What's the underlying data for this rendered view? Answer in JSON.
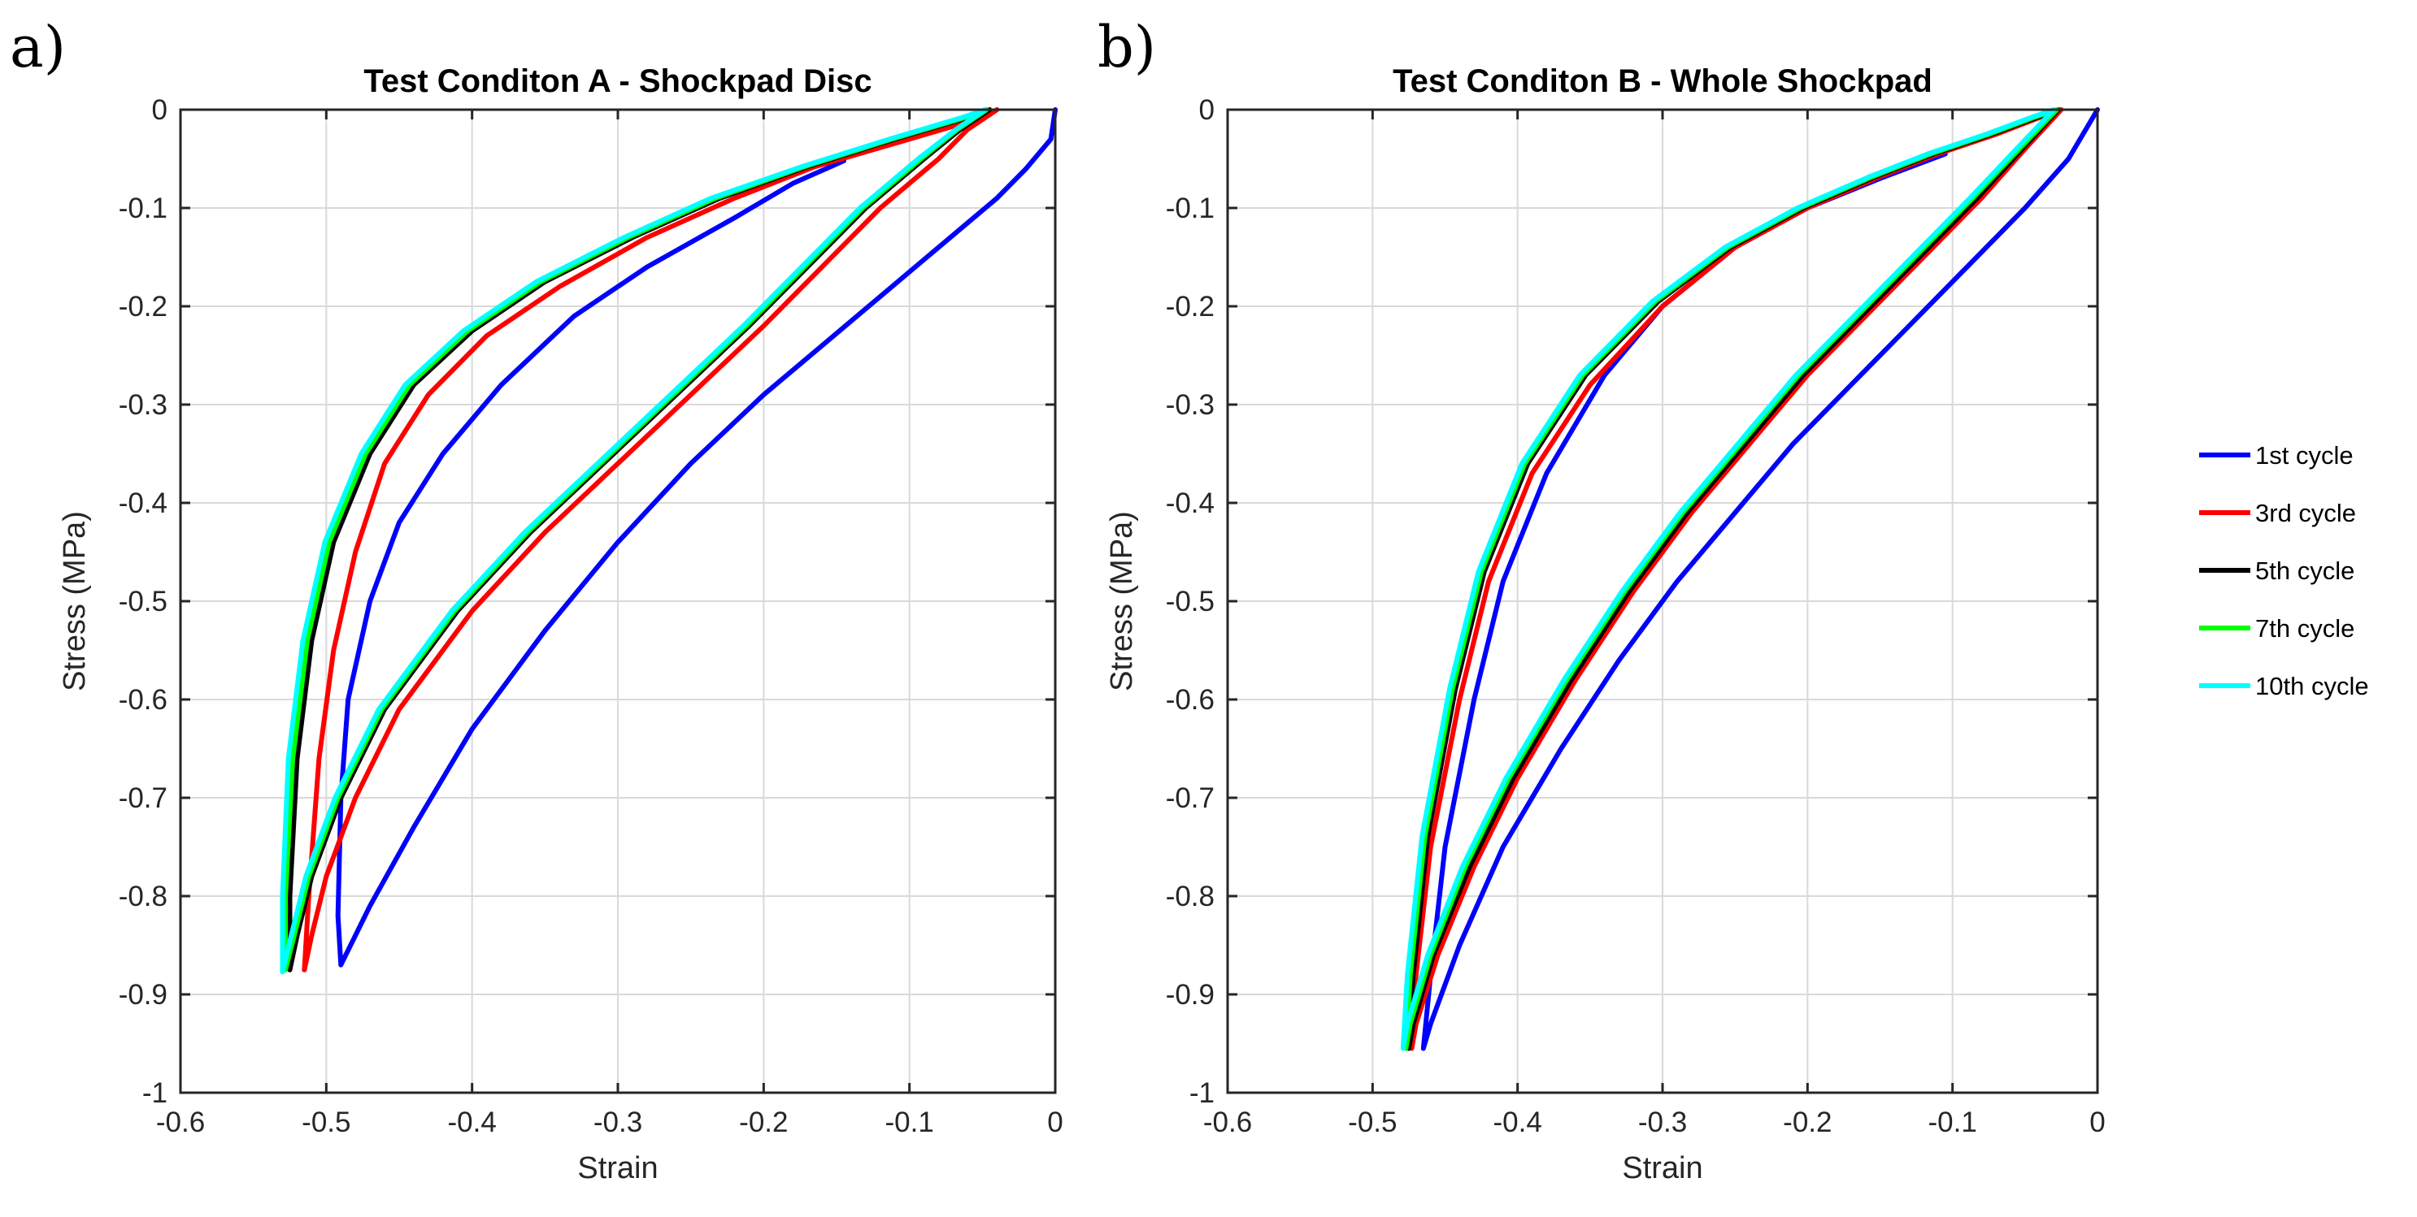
{
  "chart_data": [
    {
      "type": "line",
      "panel_label": "a)",
      "title": "Test Conditon A - Shockpad Disc",
      "xlabel": "Strain",
      "ylabel": "Stress (MPa)",
      "xlim": [
        -0.6,
        0
      ],
      "ylim": [
        -1,
        0
      ],
      "xticks": [
        -0.6,
        -0.5,
        -0.4,
        -0.3,
        -0.2,
        -0.1,
        0
      ],
      "yticks": [
        0,
        -0.1,
        -0.2,
        -0.3,
        -0.4,
        -0.5,
        -0.6,
        -0.7,
        -0.8,
        -0.9,
        -1
      ],
      "xtick_labels": [
        "-0.6",
        "-0.5",
        "-0.4",
        "-0.3",
        "-0.2",
        "-0.1",
        "0"
      ],
      "ytick_labels": [
        "0",
        "-0.1",
        "-0.2",
        "-0.3",
        "-0.4",
        "-0.5",
        "-0.6",
        "-0.7",
        "-0.8",
        "-0.9",
        "-1"
      ],
      "grid": true,
      "series": [
        {
          "name": "1st cycle",
          "color": "#0000ff",
          "x": [
            0,
            -0.003,
            -0.02,
            -0.04,
            -0.08,
            -0.12,
            -0.16,
            -0.2,
            -0.25,
            -0.3,
            -0.35,
            -0.4,
            -0.44,
            -0.47,
            -0.49,
            -0.492,
            -0.49,
            -0.485,
            -0.47,
            -0.45,
            -0.42,
            -0.38,
            -0.33,
            -0.28,
            -0.22,
            -0.18,
            -0.145
          ],
          "y": [
            0,
            -0.03,
            -0.06,
            -0.09,
            -0.14,
            -0.19,
            -0.24,
            -0.29,
            -0.36,
            -0.44,
            -0.53,
            -0.63,
            -0.73,
            -0.81,
            -0.87,
            -0.82,
            -0.7,
            -0.6,
            -0.5,
            -0.42,
            -0.35,
            -0.28,
            -0.21,
            -0.16,
            -0.11,
            -0.075,
            -0.052
          ]
        },
        {
          "name": "3rd cycle",
          "color": "#ff0000",
          "x": [
            -0.04,
            -0.06,
            -0.08,
            -0.12,
            -0.16,
            -0.2,
            -0.25,
            -0.3,
            -0.35,
            -0.4,
            -0.45,
            -0.48,
            -0.5,
            -0.51,
            -0.515,
            -0.512,
            -0.505,
            -0.495,
            -0.48,
            -0.46,
            -0.43,
            -0.39,
            -0.34,
            -0.28,
            -0.22,
            -0.165,
            -0.1,
            -0.05,
            -0.04
          ],
          "y": [
            0,
            -0.02,
            -0.05,
            -0.1,
            -0.16,
            -0.22,
            -0.29,
            -0.36,
            -0.43,
            -0.51,
            -0.61,
            -0.7,
            -0.78,
            -0.84,
            -0.875,
            -0.8,
            -0.66,
            -0.55,
            -0.45,
            -0.36,
            -0.29,
            -0.23,
            -0.18,
            -0.13,
            -0.09,
            -0.058,
            -0.03,
            -0.008,
            0
          ]
        },
        {
          "name": "5th cycle",
          "color": "#000000",
          "x": [
            -0.045,
            -0.065,
            -0.09,
            -0.13,
            -0.17,
            -0.21,
            -0.26,
            -0.31,
            -0.36,
            -0.41,
            -0.46,
            -0.49,
            -0.51,
            -0.52,
            -0.525,
            -0.525,
            -0.52,
            -0.51,
            -0.495,
            -0.47,
            -0.44,
            -0.4,
            -0.35,
            -0.29,
            -0.23,
            -0.17,
            -0.11,
            -0.06,
            -0.045
          ],
          "y": [
            0,
            -0.02,
            -0.05,
            -0.1,
            -0.16,
            -0.22,
            -0.29,
            -0.36,
            -0.43,
            -0.51,
            -0.61,
            -0.7,
            -0.78,
            -0.84,
            -0.875,
            -0.8,
            -0.66,
            -0.54,
            -0.44,
            -0.35,
            -0.28,
            -0.225,
            -0.175,
            -0.13,
            -0.09,
            -0.058,
            -0.03,
            -0.008,
            0
          ]
        },
        {
          "name": "7th cycle",
          "color": "#00ff00",
          "x": [
            -0.047,
            -0.067,
            -0.092,
            -0.132,
            -0.172,
            -0.212,
            -0.262,
            -0.312,
            -0.362,
            -0.412,
            -0.462,
            -0.492,
            -0.512,
            -0.522,
            -0.528,
            -0.528,
            -0.523,
            -0.513,
            -0.498,
            -0.473,
            -0.443,
            -0.403,
            -0.353,
            -0.293,
            -0.233,
            -0.172,
            -0.112,
            -0.062,
            -0.047
          ],
          "y": [
            0,
            -0.02,
            -0.05,
            -0.1,
            -0.16,
            -0.22,
            -0.29,
            -0.36,
            -0.43,
            -0.51,
            -0.61,
            -0.7,
            -0.78,
            -0.84,
            -0.875,
            -0.8,
            -0.66,
            -0.54,
            -0.44,
            -0.35,
            -0.28,
            -0.225,
            -0.175,
            -0.13,
            -0.09,
            -0.058,
            -0.03,
            -0.008,
            0
          ]
        },
        {
          "name": "10th cycle",
          "color": "#00ffff",
          "x": [
            -0.048,
            -0.068,
            -0.094,
            -0.134,
            -0.174,
            -0.214,
            -0.264,
            -0.314,
            -0.364,
            -0.414,
            -0.464,
            -0.494,
            -0.514,
            -0.524,
            -0.53,
            -0.53,
            -0.526,
            -0.516,
            -0.501,
            -0.476,
            -0.446,
            -0.406,
            -0.356,
            -0.296,
            -0.236,
            -0.174,
            -0.114,
            -0.064,
            -0.048
          ],
          "y": [
            0,
            -0.02,
            -0.05,
            -0.1,
            -0.16,
            -0.22,
            -0.29,
            -0.36,
            -0.43,
            -0.51,
            -0.61,
            -0.7,
            -0.78,
            -0.84,
            -0.877,
            -0.8,
            -0.66,
            -0.54,
            -0.44,
            -0.35,
            -0.28,
            -0.225,
            -0.175,
            -0.13,
            -0.09,
            -0.058,
            -0.03,
            -0.008,
            0
          ]
        }
      ]
    },
    {
      "type": "line",
      "panel_label": "b)",
      "title": "Test Conditon B - Whole Shockpad",
      "xlabel": "Strain",
      "ylabel": "Stress (MPa)",
      "xlim": [
        -0.6,
        0
      ],
      "ylim": [
        -1,
        0
      ],
      "xticks": [
        -0.6,
        -0.5,
        -0.4,
        -0.3,
        -0.2,
        -0.1,
        0
      ],
      "yticks": [
        0,
        -0.1,
        -0.2,
        -0.3,
        -0.4,
        -0.5,
        -0.6,
        -0.7,
        -0.8,
        -0.9,
        -1
      ],
      "xtick_labels": [
        "-0.6",
        "-0.5",
        "-0.4",
        "-0.3",
        "-0.2",
        "-0.1",
        "0"
      ],
      "ytick_labels": [
        "0",
        "-0.1",
        "-0.2",
        "-0.3",
        "-0.4",
        "-0.5",
        "-0.6",
        "-0.7",
        "-0.8",
        "-0.9",
        "-1"
      ],
      "grid": true,
      "series": [
        {
          "name": "1st cycle",
          "color": "#0000ff",
          "x": [
            0,
            -0.02,
            -0.05,
            -0.09,
            -0.13,
            -0.17,
            -0.21,
            -0.25,
            -0.29,
            -0.33,
            -0.37,
            -0.41,
            -0.44,
            -0.46,
            -0.465,
            -0.46,
            -0.45,
            -0.43,
            -0.41,
            -0.38,
            -0.34,
            -0.3,
            -0.25,
            -0.2,
            -0.15,
            -0.105
          ],
          "y": [
            0,
            -0.05,
            -0.1,
            -0.16,
            -0.22,
            -0.28,
            -0.34,
            -0.41,
            -0.48,
            -0.56,
            -0.65,
            -0.75,
            -0.85,
            -0.93,
            -0.955,
            -0.88,
            -0.75,
            -0.6,
            -0.48,
            -0.37,
            -0.27,
            -0.2,
            -0.14,
            -0.1,
            -0.07,
            -0.045
          ]
        },
        {
          "name": "3rd cycle",
          "color": "#ff0000",
          "x": [
            -0.025,
            -0.05,
            -0.08,
            -0.12,
            -0.16,
            -0.2,
            -0.24,
            -0.28,
            -0.32,
            -0.36,
            -0.4,
            -0.43,
            -0.455,
            -0.47,
            -0.473,
            -0.47,
            -0.46,
            -0.44,
            -0.42,
            -0.39,
            -0.35,
            -0.3,
            -0.25,
            -0.2,
            -0.15,
            -0.11,
            -0.07,
            -0.04,
            -0.025
          ],
          "y": [
            0,
            -0.04,
            -0.09,
            -0.15,
            -0.21,
            -0.27,
            -0.34,
            -0.41,
            -0.49,
            -0.58,
            -0.68,
            -0.77,
            -0.86,
            -0.93,
            -0.955,
            -0.88,
            -0.75,
            -0.6,
            -0.48,
            -0.37,
            -0.28,
            -0.2,
            -0.14,
            -0.1,
            -0.068,
            -0.045,
            -0.025,
            -0.008,
            0
          ]
        },
        {
          "name": "5th cycle",
          "color": "#000000",
          "x": [
            -0.027,
            -0.052,
            -0.083,
            -0.123,
            -0.163,
            -0.203,
            -0.243,
            -0.283,
            -0.323,
            -0.363,
            -0.403,
            -0.433,
            -0.458,
            -0.472,
            -0.475,
            -0.472,
            -0.462,
            -0.443,
            -0.423,
            -0.393,
            -0.353,
            -0.303,
            -0.253,
            -0.203,
            -0.153,
            -0.113,
            -0.073,
            -0.042,
            -0.027
          ],
          "y": [
            0,
            -0.04,
            -0.09,
            -0.15,
            -0.21,
            -0.27,
            -0.34,
            -0.41,
            -0.49,
            -0.58,
            -0.68,
            -0.77,
            -0.86,
            -0.93,
            -0.955,
            -0.88,
            -0.74,
            -0.59,
            -0.47,
            -0.36,
            -0.27,
            -0.195,
            -0.14,
            -0.1,
            -0.068,
            -0.045,
            -0.025,
            -0.008,
            0
          ]
        },
        {
          "name": "7th cycle",
          "color": "#00ff00",
          "x": [
            -0.028,
            -0.054,
            -0.086,
            -0.126,
            -0.166,
            -0.206,
            -0.246,
            -0.286,
            -0.326,
            -0.366,
            -0.406,
            -0.436,
            -0.46,
            -0.474,
            -0.477,
            -0.474,
            -0.464,
            -0.445,
            -0.425,
            -0.395,
            -0.355,
            -0.305,
            -0.255,
            -0.205,
            -0.155,
            -0.115,
            -0.075,
            -0.044,
            -0.028
          ],
          "y": [
            0,
            -0.04,
            -0.09,
            -0.15,
            -0.21,
            -0.27,
            -0.34,
            -0.41,
            -0.49,
            -0.58,
            -0.68,
            -0.77,
            -0.86,
            -0.93,
            -0.955,
            -0.88,
            -0.74,
            -0.59,
            -0.47,
            -0.36,
            -0.27,
            -0.195,
            -0.14,
            -0.1,
            -0.068,
            -0.045,
            -0.025,
            -0.008,
            0
          ]
        },
        {
          "name": "10th cycle",
          "color": "#00ffff",
          "x": [
            -0.03,
            -0.056,
            -0.088,
            -0.128,
            -0.168,
            -0.208,
            -0.248,
            -0.288,
            -0.328,
            -0.368,
            -0.408,
            -0.438,
            -0.462,
            -0.476,
            -0.479,
            -0.476,
            -0.466,
            -0.447,
            -0.427,
            -0.397,
            -0.357,
            -0.307,
            -0.257,
            -0.207,
            -0.157,
            -0.117,
            -0.077,
            -0.046,
            -0.03
          ],
          "y": [
            0,
            -0.04,
            -0.09,
            -0.15,
            -0.21,
            -0.27,
            -0.34,
            -0.41,
            -0.49,
            -0.58,
            -0.68,
            -0.77,
            -0.86,
            -0.93,
            -0.955,
            -0.88,
            -0.74,
            -0.59,
            -0.47,
            -0.36,
            -0.27,
            -0.195,
            -0.14,
            -0.1,
            -0.068,
            -0.045,
            -0.025,
            -0.008,
            0
          ]
        }
      ]
    }
  ],
  "legend": {
    "placement": "right",
    "items": [
      {
        "label": "1st cycle",
        "color": "#0000ff"
      },
      {
        "label": "3rd cycle",
        "color": "#ff0000"
      },
      {
        "label": "5th cycle",
        "color": "#000000"
      },
      {
        "label": "7th cycle",
        "color": "#00ff00"
      },
      {
        "label": "10th cycle",
        "color": "#00ffff"
      }
    ]
  }
}
